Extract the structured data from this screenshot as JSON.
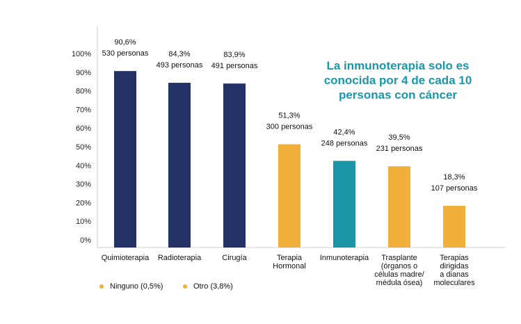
{
  "chart_data": {
    "type": "bar",
    "categories": [
      [
        "Quimioterapia"
      ],
      [
        "Radioterapia"
      ],
      [
        "Cirugía"
      ],
      [
        "Terapia",
        "Hormonal"
      ],
      [
        "Inmunoterapia"
      ],
      [
        "Trasplante",
        "(órganos o",
        "células madre/",
        "médula ósea)"
      ],
      [
        "Terapias",
        "dirigidas",
        "a dianas",
        "moleculares"
      ]
    ],
    "values": [
      90.6,
      84.3,
      83.9,
      51.3,
      42.4,
      39.5,
      18.3
    ],
    "data_labels": [
      [
        "90,6%",
        "530 personas"
      ],
      [
        "84,3%",
        "493 personas"
      ],
      [
        "83,9%",
        "491 personas"
      ],
      [
        "51,3%",
        "300 personas"
      ],
      [
        "42,4%",
        "248 personas"
      ],
      [
        "39,5%",
        "231 personas"
      ],
      [
        "18,3%",
        "107 personas"
      ]
    ],
    "colors": [
      "#233266",
      "#233266",
      "#233266",
      "#f0b03b",
      "#1a96a6",
      "#f0b03b",
      "#f0b03b"
    ],
    "yticks": [
      "0%",
      "10%",
      "20%",
      "30%",
      "40%",
      "50%",
      "60%",
      "70%",
      "80%",
      "90%",
      "100%"
    ],
    "ylim": [
      0,
      100
    ],
    "title": "",
    "xlabel": "",
    "ylabel": "",
    "grid": false
  },
  "callout": "La inmunoterapia solo es conocida por 4 de cada 10 personas con cáncer",
  "legend": [
    {
      "label": "Ninguno (0,5%)",
      "color": "#f0b03b"
    },
    {
      "label": "Otro (3,8%)",
      "color": "#f0b03b"
    }
  ]
}
